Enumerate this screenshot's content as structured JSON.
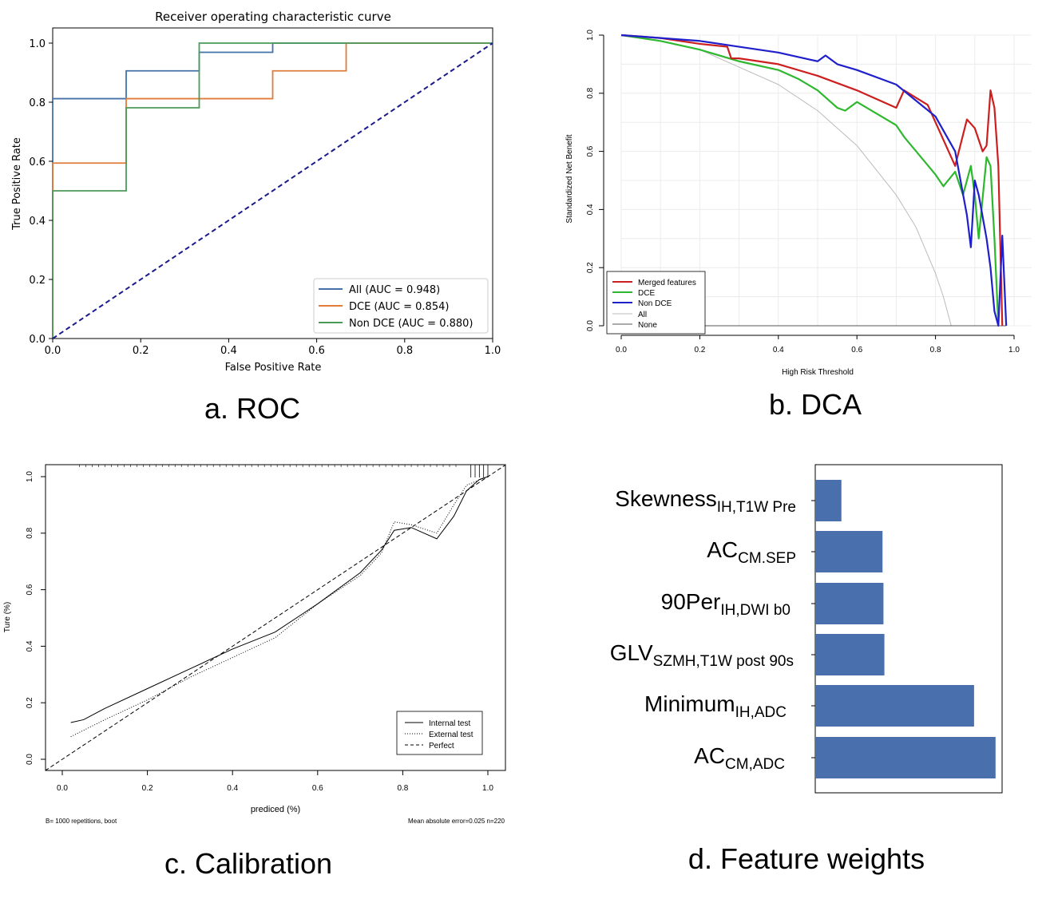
{
  "captions": {
    "a": "a. ROC",
    "b": "b. DCA",
    "c": "c. Calibration",
    "d": "d. Feature weights"
  },
  "chart_data": [
    {
      "id": "roc",
      "type": "line",
      "title": "Receiver operating characteristic curve",
      "xlabel": "False Positive Rate",
      "ylabel": "True Positive Rate",
      "xlim": [
        0,
        1
      ],
      "ylim": [
        0,
        1
      ],
      "xticks": [
        "0.0",
        "0.2",
        "0.4",
        "0.6",
        "0.8",
        "1.0"
      ],
      "yticks": [
        "0.0",
        "0.2",
        "0.4",
        "0.6",
        "0.8",
        "1.0"
      ],
      "legend_position": "bottom-right",
      "series": [
        {
          "name": "All (AUC = 0.948)",
          "color": "#4472a8",
          "x": [
            0,
            0,
            0.167,
            0.167,
            0.333,
            0.333,
            0.5,
            0.5,
            1
          ],
          "y": [
            0,
            0.812,
            0.812,
            0.906,
            0.906,
            0.969,
            0.969,
            1,
            1
          ]
        },
        {
          "name": "DCE (AUC = 0.854)",
          "color": "#e07b39",
          "x": [
            0,
            0,
            0.167,
            0.167,
            0.5,
            0.5,
            0.667,
            0.667,
            1
          ],
          "y": [
            0,
            0.594,
            0.594,
            0.812,
            0.812,
            0.906,
            0.906,
            1,
            1
          ]
        },
        {
          "name": "Non DCE (AUC = 0.880)",
          "color": "#4c9a5a",
          "x": [
            0,
            0,
            0.167,
            0.167,
            0.333,
            0.333,
            1
          ],
          "y": [
            0,
            0.5,
            0.5,
            0.781,
            0.781,
            1,
            1
          ]
        },
        {
          "name": "chance",
          "color": "#1a1a8c",
          "dashed": true,
          "legend": false,
          "x": [
            0,
            1
          ],
          "y": [
            0,
            1
          ]
        }
      ]
    },
    {
      "id": "dca",
      "type": "line",
      "xlabel": "High Risk Threshold",
      "ylabel": "Standardized Net Benefit",
      "xlim": [
        0,
        1
      ],
      "ylim": [
        0,
        1
      ],
      "xticks": [
        "0.0",
        "0.2",
        "0.4",
        "0.6",
        "0.8",
        "1.0"
      ],
      "yticks": [
        "0.0",
        "0.2",
        "0.4",
        "0.6",
        "0.8",
        "1.0"
      ],
      "legend_position": "bottom-left",
      "series": [
        {
          "name": "Merged features",
          "color": "#cc1f1f",
          "x": [
            0,
            0.1,
            0.2,
            0.27,
            0.28,
            0.3,
            0.4,
            0.5,
            0.6,
            0.7,
            0.72,
            0.78,
            0.8,
            0.85,
            0.88,
            0.9,
            0.92,
            0.93,
            0.94,
            0.95,
            0.96,
            0.97
          ],
          "y": [
            1,
            0.99,
            0.97,
            0.96,
            0.92,
            0.92,
            0.9,
            0.86,
            0.81,
            0.75,
            0.81,
            0.76,
            0.7,
            0.55,
            0.71,
            0.68,
            0.6,
            0.62,
            0.81,
            0.75,
            0.55,
            0
          ]
        },
        {
          "name": "DCE",
          "color": "#2eb82e",
          "x": [
            0,
            0.1,
            0.2,
            0.3,
            0.4,
            0.45,
            0.5,
            0.55,
            0.57,
            0.6,
            0.7,
            0.72,
            0.8,
            0.82,
            0.85,
            0.87,
            0.89,
            0.9,
            0.91,
            0.93,
            0.94,
            0.95,
            0.96
          ],
          "y": [
            1,
            0.98,
            0.95,
            0.91,
            0.88,
            0.85,
            0.81,
            0.75,
            0.74,
            0.77,
            0.69,
            0.65,
            0.52,
            0.48,
            0.53,
            0.45,
            0.55,
            0.45,
            0.3,
            0.58,
            0.55,
            0.3,
            0
          ]
        },
        {
          "name": "Non DCE",
          "color": "#1f1fcc",
          "x": [
            0,
            0.1,
            0.2,
            0.3,
            0.4,
            0.5,
            0.52,
            0.55,
            0.6,
            0.7,
            0.8,
            0.85,
            0.88,
            0.89,
            0.9,
            0.91,
            0.93,
            0.94,
            0.95,
            0.96,
            0.97,
            0.98
          ],
          "y": [
            1,
            0.99,
            0.98,
            0.96,
            0.94,
            0.91,
            0.93,
            0.9,
            0.88,
            0.83,
            0.72,
            0.6,
            0.38,
            0.27,
            0.5,
            0.45,
            0.3,
            0.2,
            0.05,
            0,
            0.31,
            0
          ]
        },
        {
          "name": "All",
          "color": "#bbbbbb",
          "x": [
            0,
            0.1,
            0.2,
            0.3,
            0.4,
            0.5,
            0.6,
            0.7,
            0.75,
            0.8,
            0.82,
            0.84
          ],
          "y": [
            1,
            0.98,
            0.95,
            0.89,
            0.83,
            0.74,
            0.62,
            0.45,
            0.34,
            0.18,
            0.1,
            0
          ]
        },
        {
          "name": "None",
          "color": "#555555",
          "x": [
            0,
            0.98
          ],
          "y": [
            0,
            0
          ]
        }
      ]
    },
    {
      "id": "calibration",
      "type": "line",
      "xlabel": "prediced (%)",
      "ylabel": "Ture (%)",
      "xlim": [
        0,
        1
      ],
      "ylim": [
        0,
        1
      ],
      "xticks": [
        "0.0",
        "0.2",
        "0.4",
        "0.6",
        "0.8",
        "1.0"
      ],
      "yticks": [
        "0.0",
        "0.2",
        "0.4",
        "0.6",
        "0.8",
        "1.0"
      ],
      "legend_position": "bottom-right",
      "footer_left": "B= 1000 repetitions, boot",
      "footer_right": "Mean absolute error=0.025 n=220",
      "series": [
        {
          "name": "Internal test",
          "style": "solid",
          "x": [
            0.02,
            0.05,
            0.1,
            0.2,
            0.3,
            0.4,
            0.45,
            0.5,
            0.6,
            0.7,
            0.75,
            0.78,
            0.82,
            0.88,
            0.92,
            0.95,
            0.98,
            1.0
          ],
          "y": [
            0.13,
            0.14,
            0.18,
            0.25,
            0.32,
            0.39,
            0.42,
            0.45,
            0.55,
            0.66,
            0.74,
            0.81,
            0.82,
            0.78,
            0.86,
            0.95,
            0.99,
            1.0
          ]
        },
        {
          "name": "External test",
          "style": "dotted",
          "x": [
            0.02,
            0.1,
            0.2,
            0.3,
            0.4,
            0.5,
            0.6,
            0.7,
            0.75,
            0.78,
            0.82,
            0.88,
            0.92,
            0.95,
            1.0
          ],
          "y": [
            0.08,
            0.14,
            0.21,
            0.29,
            0.36,
            0.43,
            0.55,
            0.65,
            0.73,
            0.84,
            0.83,
            0.8,
            0.9,
            0.97,
            1.0
          ]
        },
        {
          "name": "Perfect",
          "style": "dashed",
          "x": [
            -0.04,
            1.04
          ],
          "y": [
            -0.04,
            1.04
          ]
        }
      ]
    },
    {
      "id": "feature_weights",
      "type": "bar",
      "orientation": "horizontal",
      "color": "#4a6fad",
      "xlim": [
        0,
        1
      ],
      "features": [
        {
          "base": "Skewness",
          "sub": "IH,T1W Pre",
          "value": 0.14
        },
        {
          "base": "AC",
          "sub": "CM.SEP",
          "value": 0.36
        },
        {
          "base": "90Per",
          "sub": "IH,DWI  b0",
          "value": 0.365
        },
        {
          "base": "GLV",
          "sub": "SZMH,T1W  post 90s",
          "value": 0.37
        },
        {
          "base": "Minimum",
          "sub": "IH,ADC",
          "value": 0.85
        },
        {
          "base": "AC",
          "sub": "CM,ADC",
          "value": 0.965
        }
      ]
    }
  ]
}
